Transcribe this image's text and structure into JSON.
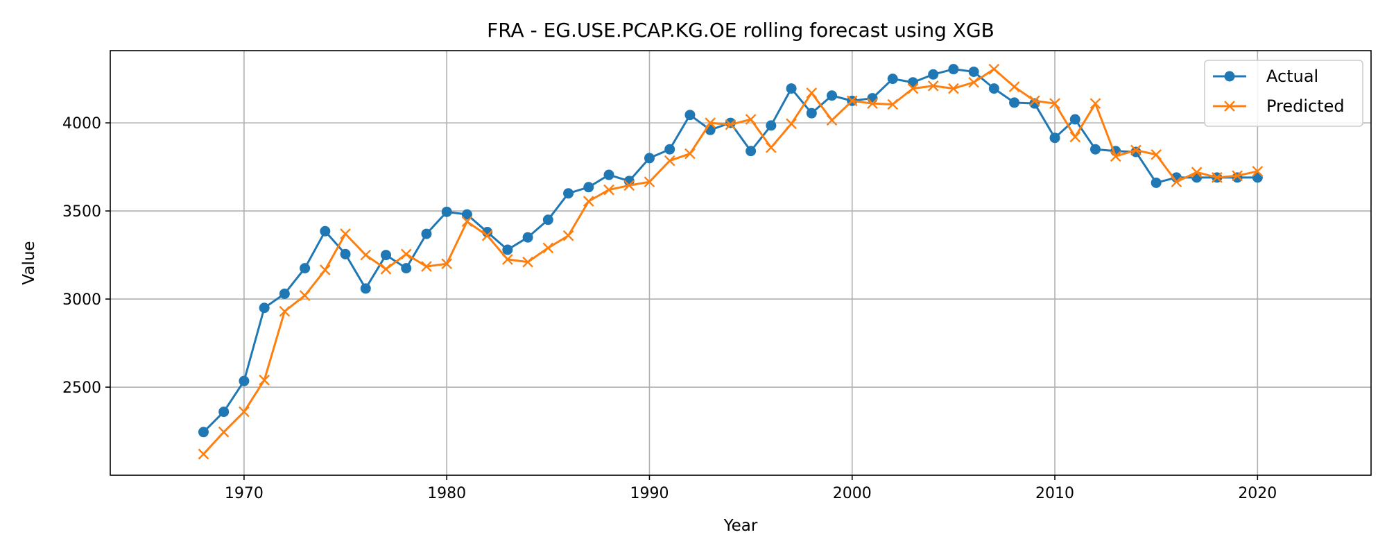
{
  "chart_data": {
    "type": "line",
    "title": "FRA - EG.USE.PCAP.KG.OE rolling forecast using XGB",
    "xlabel": "Year",
    "ylabel": "Value",
    "xlim": [
      1963.4,
      2025.6
    ],
    "ylim": [
      2000,
      4410
    ],
    "xticks": [
      1970,
      1980,
      1990,
      2000,
      2010,
      2020
    ],
    "yticks": [
      2500,
      3000,
      3500,
      4000
    ],
    "grid": true,
    "legend_position": "top-right",
    "x": [
      1968,
      1969,
      1970,
      1971,
      1972,
      1973,
      1974,
      1975,
      1976,
      1977,
      1978,
      1979,
      1980,
      1981,
      1982,
      1983,
      1984,
      1985,
      1986,
      1987,
      1988,
      1989,
      1990,
      1991,
      1992,
      1993,
      1994,
      1995,
      1996,
      1997,
      1998,
      1999,
      2000,
      2001,
      2002,
      2003,
      2004,
      2005,
      2006,
      2007,
      2008,
      2009,
      2010,
      2011,
      2012,
      2013,
      2014,
      2015,
      2016,
      2017,
      2018,
      2019,
      2020
    ],
    "series": [
      {
        "name": "Actual",
        "color": "#1f77b4",
        "marker": "circle",
        "values": [
          2245,
          2360,
          2535,
          2950,
          3030,
          3175,
          3385,
          3255,
          3060,
          3250,
          3175,
          3370,
          3495,
          3480,
          3380,
          3280,
          3350,
          3450,
          3600,
          3635,
          3705,
          3670,
          3800,
          3850,
          4045,
          3960,
          4000,
          3840,
          3985,
          4195,
          4055,
          4155,
          4125,
          4140,
          4250,
          4230,
          4275,
          4305,
          4290,
          4195,
          4115,
          4110,
          3915,
          4020,
          3850,
          3840,
          3835,
          3660,
          3690,
          3690,
          3690,
          3690,
          3690
        ]
      },
      {
        "name": "Predicted",
        "color": "#ff7f0e",
        "marker": "x",
        "values": [
          2120,
          2245,
          2360,
          2540,
          2930,
          3020,
          3165,
          3370,
          3250,
          3170,
          3255,
          3185,
          3200,
          3440,
          3360,
          3225,
          3210,
          3290,
          3360,
          3555,
          3620,
          3645,
          3665,
          3785,
          3825,
          4000,
          3990,
          4020,
          3860,
          3995,
          4170,
          4015,
          4125,
          4110,
          4105,
          4195,
          4210,
          4195,
          4230,
          4305,
          4205,
          4125,
          4110,
          3920,
          4110,
          3810,
          3845,
          3820,
          3665,
          3720,
          3690,
          3700,
          3725
        ]
      }
    ]
  }
}
